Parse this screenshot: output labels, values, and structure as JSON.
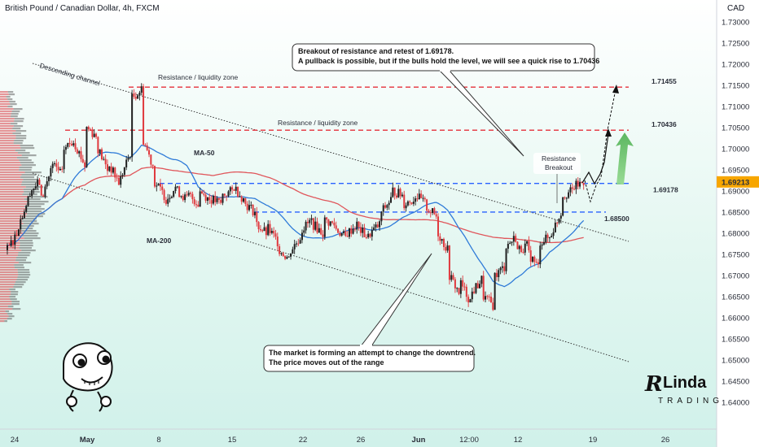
{
  "header": {
    "title": "British Pound / Canadian Dollar, 4h, FXCM",
    "currency": "CAD"
  },
  "chart_data": {
    "type": "candlestick",
    "ylim": [
      1.6375,
      1.7317
    ],
    "y_ticks": [
      1.64,
      1.645,
      1.65,
      1.655,
      1.66,
      1.665,
      1.67,
      1.675,
      1.68,
      1.685,
      1.69,
      1.695,
      1.7,
      1.705,
      1.71,
      1.715,
      1.72,
      1.725,
      1.73
    ],
    "y_tick_labels": [
      "1.64000",
      "1.64500",
      "1.65000",
      "1.65500",
      "1.66000",
      "1.66500",
      "1.67000",
      "1.67500",
      "1.68000",
      "1.68500",
      "1.69000",
      "1.69500",
      "1.70000",
      "1.70500",
      "1.71000",
      "1.71500",
      "1.72000",
      "1.72500",
      "1.73000"
    ],
    "x_tick_labels": [
      "24",
      "May",
      "8",
      "15",
      "22",
      "26",
      "Jun",
      "12:00",
      "12",
      "19",
      "26"
    ],
    "current_price_label": "1.69213",
    "current_price": 1.69213,
    "levels": [
      {
        "label": "1.71455",
        "value": 1.71455,
        "style": "red-dashed"
      },
      {
        "label": "1.70436",
        "value": 1.70436,
        "style": "red-dashed"
      },
      {
        "label": "1.69178",
        "value": 1.69178,
        "style": "blue-dashed"
      },
      {
        "label": "1.68500",
        "value": 1.685,
        "style": "blue-dashed"
      }
    ],
    "zone_labels": [
      "Resistance / liquidity zone",
      "Resistance / liquidity zone"
    ],
    "channel_label": "Descending channel",
    "ma_labels": {
      "ma50": "MA-50",
      "ma200": "MA-200"
    },
    "breakout_label_line1": "Resistance",
    "breakout_label_line2": "Breakout",
    "annotation_top": {
      "line1": "Breakout of resistance and retest of 1.69178.",
      "line2": "A pullback is possible, but if the bulls hold the level, we will see a quick rise to 1.70436"
    },
    "annotation_bottom": {
      "line1": "The market is forming an attempt to change the downtrend.",
      "line2": "The price moves out of the range"
    },
    "price_path": [
      [
        1.676,
        1.68
      ],
      [
        1.682,
        1.688
      ],
      [
        1.69,
        1.692
      ],
      [
        1.688,
        1.695
      ],
      [
        1.696,
        1.694
      ],
      [
        1.7,
        1.702
      ],
      [
        1.701,
        1.696
      ],
      [
        1.705,
        1.703
      ],
      [
        1.7,
        1.695
      ],
      [
        1.696,
        1.692
      ],
      [
        1.693,
        1.699
      ],
      [
        1.712,
        1.714
      ],
      [
        1.702,
        1.696
      ],
      [
        1.692,
        1.689
      ],
      [
        1.688,
        1.691
      ],
      [
        1.69,
        1.688
      ],
      [
        1.689,
        1.687
      ],
      [
        1.69,
        1.688
      ],
      [
        1.688,
        1.687
      ],
      [
        1.689,
        1.69
      ],
      [
        1.691,
        1.688
      ],
      [
        1.687,
        1.685
      ],
      [
        1.682,
        1.68
      ],
      [
        1.681,
        1.678
      ],
      [
        1.676,
        1.674
      ],
      [
        1.676,
        1.679
      ],
      [
        1.681,
        1.683
      ],
      [
        1.682,
        1.68
      ],
      [
        1.683,
        1.682
      ],
      [
        1.681,
        1.679
      ],
      [
        1.68,
        1.682
      ],
      [
        1.681,
        1.679
      ],
      [
        1.68,
        1.682
      ],
      [
        1.685,
        1.688
      ],
      [
        1.69,
        1.689
      ],
      [
        1.687,
        1.688
      ],
      [
        1.689,
        1.687
      ],
      [
        1.686,
        1.684
      ],
      [
        1.68,
        1.676
      ],
      [
        1.67,
        1.666
      ],
      [
        1.668,
        1.664
      ],
      [
        1.666,
        1.669
      ],
      [
        1.665,
        1.663
      ],
      [
        1.67,
        1.672
      ],
      [
        1.677,
        1.679
      ],
      [
        1.676,
        1.677
      ],
      [
        1.675,
        1.672
      ],
      [
        1.678,
        1.679
      ],
      [
        1.68,
        1.685
      ],
      [
        1.689,
        1.69
      ],
      [
        1.691,
        1.6921
      ]
    ]
  }
}
